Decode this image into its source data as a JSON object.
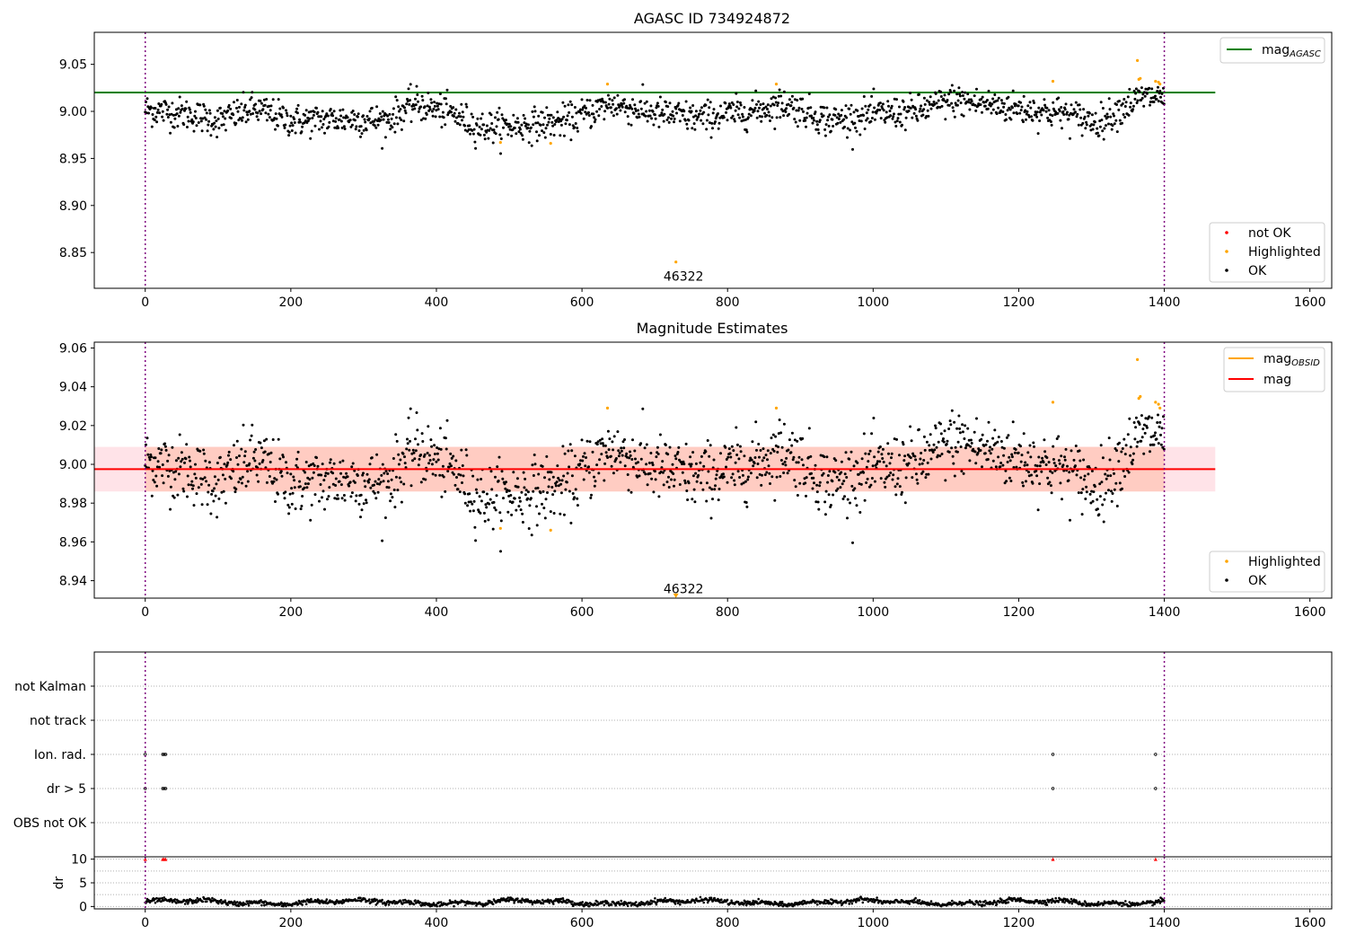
{
  "chart_data": [
    {
      "type": "scatter",
      "title": "AGASC ID 734924872",
      "xlim": [
        -70,
        1630
      ],
      "ylim": [
        8.812,
        9.084
      ],
      "xticks": [
        0,
        200,
        400,
        600,
        800,
        1000,
        1200,
        1400,
        1600
      ],
      "yticks": [
        8.85,
        8.9,
        8.95,
        9.0,
        9.05
      ],
      "yticklabels": [
        "8.85",
        "8.90",
        "8.95",
        "9.00",
        "9.05"
      ],
      "vlines": [
        0,
        1400
      ],
      "hline": {
        "y": 9.02,
        "x_end": 1470,
        "color": "#008000",
        "label": "mag",
        "label_sub": "AGASC"
      },
      "legend_upper": [
        {
          "label": "mag",
          "sub": "AGASC",
          "kind": "line",
          "color": "#008000"
        }
      ],
      "legend_lower": [
        {
          "label": "not OK",
          "kind": "point",
          "color": "#ff0000"
        },
        {
          "label": "Highlighted",
          "kind": "point",
          "color": "#ffa500"
        },
        {
          "label": "OK",
          "kind": "point",
          "color": "#000000"
        }
      ],
      "annotations": [
        {
          "text": "46322",
          "x": 700,
          "y": 8.818
        }
      ],
      "series": [
        {
          "name": "Highlighted",
          "color": "#ffa500",
          "x": [
            488,
            557,
            635,
            867,
            1247,
            1363,
            1365,
            1367,
            1388,
            1392,
            1394,
            729
          ],
          "y": [
            8.967,
            8.966,
            9.029,
            9.029,
            9.032,
            9.054,
            9.034,
            9.035,
            9.032,
            9.031,
            9.029,
            8.84
          ]
        },
        {
          "name": "OK",
          "color": "#000000",
          "generated": true,
          "x_start": 0,
          "x_end": 1400
        }
      ]
    },
    {
      "type": "scatter",
      "title": "Magnitude Estimates",
      "xlim": [
        -70,
        1630
      ],
      "ylim": [
        8.931,
        9.063
      ],
      "xticks": [
        0,
        200,
        400,
        600,
        800,
        1000,
        1200,
        1400,
        1600
      ],
      "yticks": [
        8.94,
        8.96,
        8.98,
        9.0,
        9.02,
        9.04,
        9.06
      ],
      "yticklabels": [
        "8.94",
        "8.96",
        "8.98",
        "9.00",
        "9.02",
        "9.04",
        "9.06"
      ],
      "vlines": [
        0,
        1400
      ],
      "mag_line": {
        "y": 8.9975,
        "x_end": 1470,
        "color": "#ff0000"
      },
      "band_pink": {
        "y0": 8.986,
        "y1": 9.009,
        "x_end": 1470,
        "color": "#ffc0cb"
      },
      "band_orange": {
        "y0": 8.986,
        "y1": 9.009,
        "x_end": 1400,
        "color": "#ffa07a"
      },
      "legend_upper": [
        {
          "label": "mag",
          "sub": "OBSID",
          "kind": "line",
          "color": "#ffa500"
        },
        {
          "label": "mag",
          "sub": "",
          "kind": "line",
          "color": "#ff0000"
        }
      ],
      "legend_lower": [
        {
          "label": "Highlighted",
          "kind": "point",
          "color": "#ffa500"
        },
        {
          "label": "OK",
          "kind": "point",
          "color": "#000000"
        }
      ],
      "annotations": [
        {
          "text": "46322",
          "x": 700,
          "y": 8.9345
        }
      ],
      "marker_triangle": {
        "x": 729,
        "y": 8.932,
        "color": "#ffa500"
      },
      "series": [
        {
          "name": "Highlighted",
          "color": "#ffa500",
          "x": [
            488,
            557,
            635,
            867,
            1247,
            1363,
            1365,
            1367,
            1388,
            1392,
            1394
          ],
          "y": [
            8.967,
            8.966,
            9.029,
            9.029,
            9.032,
            9.054,
            9.034,
            9.035,
            9.032,
            9.031,
            9.029
          ]
        },
        {
          "name": "OK",
          "color": "#000000",
          "generated": true,
          "x_start": 0,
          "x_end": 1400
        }
      ]
    },
    {
      "type": "scatter",
      "title": "",
      "xlim": [
        -70,
        1630
      ],
      "categories": [
        "not Kalman",
        "not track",
        "Ion. rad.",
        "dr > 5",
        "OBS not OK"
      ],
      "vlines": [
        0,
        1400
      ],
      "flag_points": {
        "Ion. rad.": [
          0,
          24,
          26,
          28,
          1247,
          1388
        ],
        "dr > 5": [
          0,
          24,
          26,
          28,
          1247,
          1388
        ]
      }
    },
    {
      "type": "scatter",
      "title": "",
      "ylabel": "dr",
      "xlim": [
        -70,
        1630
      ],
      "ylim": [
        -0.5,
        10.5
      ],
      "yticks": [
        0,
        5,
        10
      ],
      "xticks": [
        0,
        200,
        400,
        600,
        800,
        1000,
        1200,
        1400,
        1600
      ],
      "vlines": [
        0,
        1400
      ],
      "gridlines": [
        0,
        2.5,
        5,
        7.5,
        10
      ],
      "capped_points": {
        "x": [
          0,
          24,
          26,
          28,
          1247,
          1388
        ],
        "y": 10,
        "color": "#ff0000"
      },
      "series": [
        {
          "name": "dr",
          "color": "#000000",
          "generated": true,
          "x_start": 0,
          "x_end": 1400
        }
      ]
    }
  ]
}
